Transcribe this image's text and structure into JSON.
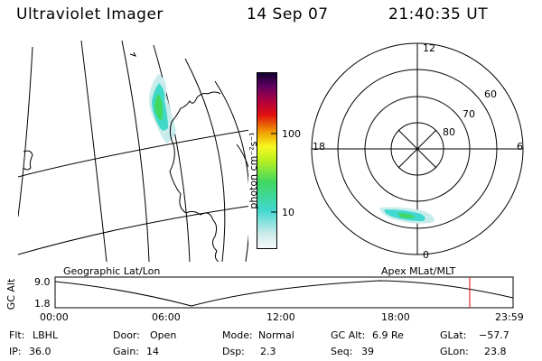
{
  "header": {
    "instrument": "Ultraviolet Imager",
    "date": "14 Sep 07",
    "time": "21:40:35 UT"
  },
  "colorbar": {
    "unit_label": "photon cm⁻²s⁻¹",
    "ticks": [
      "100",
      "10"
    ],
    "colors": [
      "#f8f8f8",
      "#d0ecec",
      "#40d8d0",
      "#40d860",
      "#b8f020",
      "#f8f820",
      "#f0a000",
      "#e01010",
      "#b00040",
      "#600060",
      "#100030"
    ]
  },
  "geo_panel": {
    "label": "Geographic Lat/Lon"
  },
  "polar_panel": {
    "label": "Apex MLat/MLT",
    "mlt_labels": {
      "top": "12",
      "left": "18",
      "right": "6",
      "bottom": "0"
    },
    "lat_labels": [
      "60",
      "70",
      "80"
    ]
  },
  "timeline": {
    "y_axis_label": "GC Alt",
    "y_max": "9.0",
    "y_min": "1.8",
    "time_ticks": [
      "00:00",
      "06:00",
      "12:00",
      "18:00",
      "23:59"
    ],
    "current_marker_color": "#e00000"
  },
  "info": {
    "flt_label": "Flt:",
    "flt_value": "LBHL",
    "door_label": "Door:",
    "door_value": "Open",
    "mode_label": "Mode:",
    "mode_value": "Normal",
    "gcalt_label": "GC Alt:",
    "gcalt_value": "6.9 Re",
    "glat_label": "GLat:",
    "glat_value": "−57.7",
    "ip_label": "IP:",
    "ip_value": "36.0",
    "gain_label": "Gain:",
    "gain_value": "14",
    "dsp_label": "Dsp:",
    "dsp_value": "2.3",
    "seq_label": "Seq:",
    "seq_value": "39",
    "glon_label": "GLon:",
    "glon_value": "23.8"
  }
}
